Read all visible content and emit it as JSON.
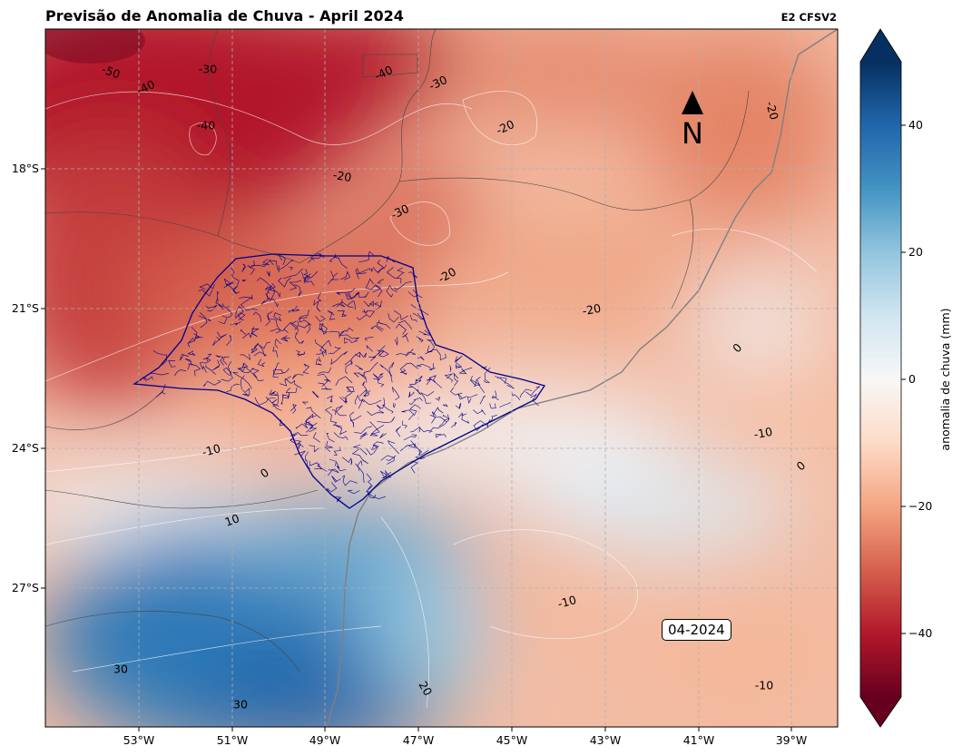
{
  "header": {
    "title": "Previsão de Anomalia de Chuva - April 2024",
    "model_label": "E2 CFSV2"
  },
  "map": {
    "date_label": "04-2024",
    "north_label": "N",
    "x_ticks": [
      "53°W",
      "51°W",
      "49°W",
      "47°W",
      "45°W",
      "43°W",
      "41°W",
      "39°W"
    ],
    "y_ticks": [
      "18°S",
      "21°S",
      "24°S",
      "27°S"
    ],
    "contour_labels": [
      "-50",
      "-40",
      "-30",
      "-40",
      "-40",
      "-30",
      "-20",
      "-20",
      "-20",
      "-30",
      "-20",
      "-20",
      "0",
      "-10",
      "0",
      "-10",
      "0",
      "10",
      "-10",
      "30",
      "30",
      "20",
      "-10"
    ],
    "colors": {
      "state_border": "#00008b",
      "coast": "#808080",
      "grid": "#b0b0b0"
    }
  },
  "colorbar": {
    "label": "anomalia de chuva (mm)",
    "ticks": [
      "40",
      "20",
      "0",
      "−20",
      "−40"
    ],
    "range": [
      -50,
      50
    ],
    "cmap": [
      "#67001f",
      "#b2182b",
      "#d6604d",
      "#f4a582",
      "#fddbc7",
      "#f7f7f7",
      "#d1e5f0",
      "#92c5de",
      "#4393c3",
      "#2166ac",
      "#053061"
    ]
  }
}
